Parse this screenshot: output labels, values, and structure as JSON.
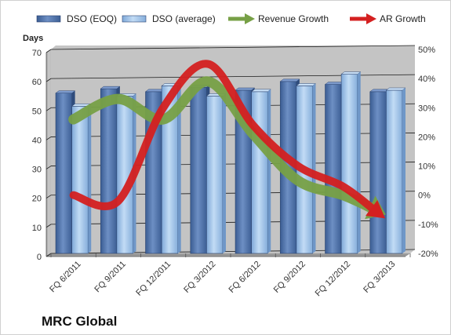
{
  "chart_data": {
    "type": "bar",
    "company": "MRC Global",
    "left_axis_title": "Days",
    "categories": [
      "FQ 6/2011",
      "FQ 9/2011",
      "FQ 12/2011",
      "FQ 3/2012",
      "FQ 6/2012",
      "FQ 9/2012",
      "FQ 12/2012",
      "FQ 3/2013"
    ],
    "series": [
      {
        "name": "DSO (EOQ)",
        "kind": "bar",
        "axis": "left",
        "color": "#4f71a8",
        "values": [
          55,
          56.5,
          55.5,
          57,
          56,
          59,
          58,
          55.5
        ]
      },
      {
        "name": "DSO (average)",
        "kind": "bar",
        "axis": "left",
        "color": "#9ec3ea",
        "values": [
          50.5,
          54,
          57.5,
          54,
          55.5,
          57.5,
          61.5,
          56
        ]
      },
      {
        "name": "Revenue Growth",
        "kind": "line",
        "axis": "right",
        "color": "#77a046",
        "values": [
          26,
          33,
          26,
          39,
          21,
          5,
          0,
          -6
        ]
      },
      {
        "name": "AR Growth",
        "kind": "line",
        "axis": "right",
        "color": "#d42020",
        "values": [
          0,
          -2,
          30,
          45,
          24,
          10,
          3,
          -7
        ]
      }
    ],
    "left_axis": {
      "min": 0,
      "max": 70,
      "ticks": [
        "0",
        "10",
        "20",
        "30",
        "40",
        "50",
        "60",
        "70"
      ]
    },
    "right_axis": {
      "min": -20,
      "max": 50,
      "ticks": [
        "-20%",
        "-10%",
        "0%",
        "10%",
        "20%",
        "30%",
        "40%",
        "50%"
      ]
    },
    "grid": true,
    "legend_position": "top",
    "plot_background": "#c4c4c4"
  }
}
